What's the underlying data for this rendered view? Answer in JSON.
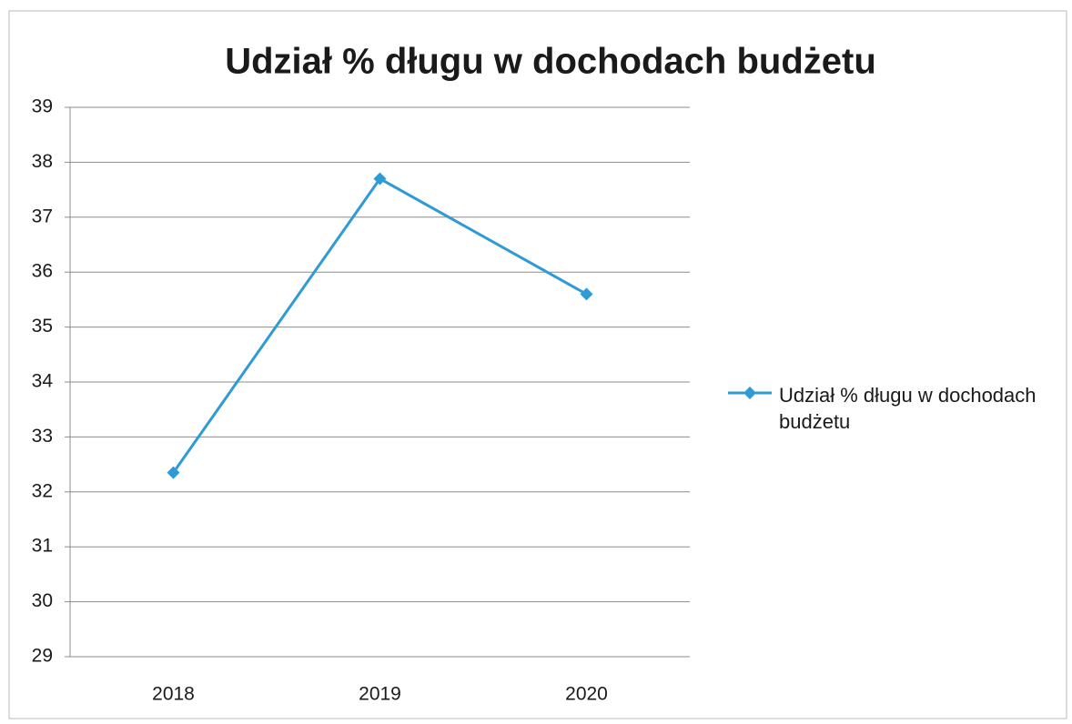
{
  "chart_data": {
    "type": "line",
    "title": "Udział % długu w dochodach budżetu",
    "categories": [
      "2018",
      "2019",
      "2020"
    ],
    "series": [
      {
        "name": "Udział % długu w dochodach budżetu",
        "color": "#2e9bd6",
        "values": [
          32.35,
          37.7,
          35.6
        ]
      }
    ],
    "ylim": [
      29,
      39
    ],
    "yticks": [
      29,
      30,
      31,
      32,
      33,
      34,
      35,
      36,
      37,
      38,
      39
    ],
    "grid": true,
    "legend": "right"
  }
}
